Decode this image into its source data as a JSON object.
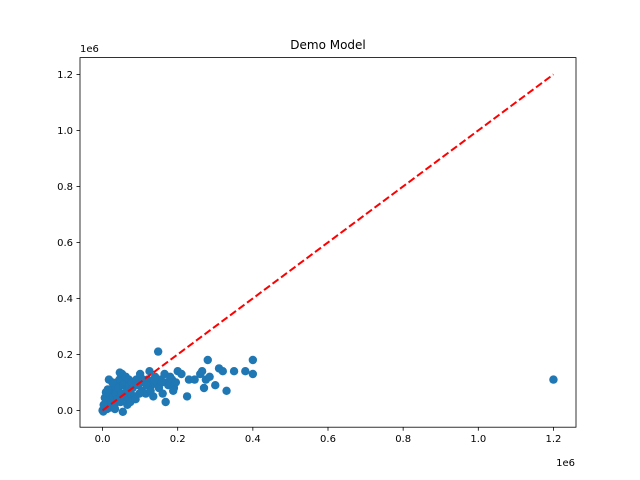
{
  "chart_data": {
    "type": "scatter",
    "title": "Demo Model",
    "xlabel": "",
    "ylabel": "",
    "x_offset_text": "1e6",
    "y_offset_text": "1e6",
    "xlim": [
      -60000,
      1260000
    ],
    "ylim": [
      -60000,
      1260000
    ],
    "x_ticks": [
      0,
      200000,
      400000,
      600000,
      800000,
      1000000,
      1200000
    ],
    "x_tick_labels": [
      "0.0",
      "0.2",
      "0.4",
      "0.6",
      "0.8",
      "1.0",
      "1.2"
    ],
    "y_ticks": [
      0,
      200000,
      400000,
      600000,
      800000,
      1000000,
      1200000
    ],
    "y_tick_labels": [
      "0.0",
      "0.2",
      "0.4",
      "0.6",
      "0.8",
      "1.0",
      "1.2"
    ],
    "grid": false,
    "colors": {
      "points": "#1f77b4",
      "reference_line": "#ff0000"
    },
    "reference_line": {
      "style": "dashed",
      "from": [
        0,
        0
      ],
      "to": [
        1200000,
        1200000
      ]
    },
    "series": [
      {
        "points": [
          [
            0,
            0
          ],
          [
            2000,
            -4000
          ],
          [
            5000,
            8000
          ],
          [
            8000,
            15000
          ],
          [
            10000,
            25000
          ],
          [
            12000,
            5000
          ],
          [
            15000,
            40000
          ],
          [
            18000,
            60000
          ],
          [
            20000,
            10000
          ],
          [
            22000,
            70000
          ],
          [
            25000,
            30000
          ],
          [
            28000,
            50000
          ],
          [
            30000,
            90000
          ],
          [
            32000,
            20000
          ],
          [
            35000,
            60000
          ],
          [
            38000,
            100000
          ],
          [
            40000,
            40000
          ],
          [
            42000,
            80000
          ],
          [
            45000,
            110000
          ],
          [
            48000,
            30000
          ],
          [
            50000,
            60000
          ],
          [
            52000,
            130000
          ],
          [
            55000,
            90000
          ],
          [
            58000,
            50000
          ],
          [
            60000,
            100000
          ],
          [
            62000,
            120000
          ],
          [
            65000,
            70000
          ],
          [
            68000,
            40000
          ],
          [
            70000,
            110000
          ],
          [
            72000,
            90000
          ],
          [
            75000,
            60000
          ],
          [
            78000,
            100000
          ],
          [
            80000,
            80000
          ],
          [
            85000,
            50000
          ],
          [
            90000,
            110000
          ],
          [
            95000,
            90000
          ],
          [
            100000,
            130000
          ],
          [
            105000,
            70000
          ],
          [
            110000,
            100000
          ],
          [
            115000,
            60000
          ],
          [
            120000,
            110000
          ],
          [
            125000,
            140000
          ],
          [
            130000,
            90000
          ],
          [
            135000,
            50000
          ],
          [
            140000,
            120000
          ],
          [
            145000,
            100000
          ],
          [
            148000,
            210000
          ],
          [
            150000,
            80000
          ],
          [
            155000,
            110000
          ],
          [
            160000,
            60000
          ],
          [
            165000,
            130000
          ],
          [
            170000,
            100000
          ],
          [
            175000,
            90000
          ],
          [
            180000,
            120000
          ],
          [
            185000,
            110000
          ],
          [
            190000,
            80000
          ],
          [
            195000,
            100000
          ],
          [
            200000,
            140000
          ],
          [
            210000,
            130000
          ],
          [
            225000,
            50000
          ],
          [
            230000,
            110000
          ],
          [
            245000,
            110000
          ],
          [
            260000,
            130000
          ],
          [
            265000,
            140000
          ],
          [
            270000,
            80000
          ],
          [
            275000,
            110000
          ],
          [
            280000,
            180000
          ],
          [
            285000,
            120000
          ],
          [
            300000,
            90000
          ],
          [
            310000,
            150000
          ],
          [
            320000,
            140000
          ],
          [
            330000,
            70000
          ],
          [
            350000,
            140000
          ],
          [
            380000,
            140000
          ],
          [
            400000,
            180000
          ],
          [
            400000,
            130000
          ],
          [
            1200000,
            110000
          ],
          [
            3000,
            20000
          ],
          [
            6000,
            45000
          ],
          [
            9000,
            65000
          ],
          [
            14000,
            75000
          ],
          [
            17000,
            110000
          ],
          [
            26000,
            100000
          ],
          [
            33000,
            5000
          ],
          [
            46000,
            135000
          ],
          [
            54000,
            -5000
          ],
          [
            66000,
            20000
          ],
          [
            74000,
            30000
          ],
          [
            88000,
            40000
          ],
          [
            98000,
            60000
          ],
          [
            108000,
            110000
          ],
          [
            118000,
            90000
          ],
          [
            128000,
            70000
          ],
          [
            138000,
            110000
          ],
          [
            158000,
            100000
          ],
          [
            168000,
            30000
          ],
          [
            188000,
            70000
          ]
        ]
      }
    ]
  }
}
